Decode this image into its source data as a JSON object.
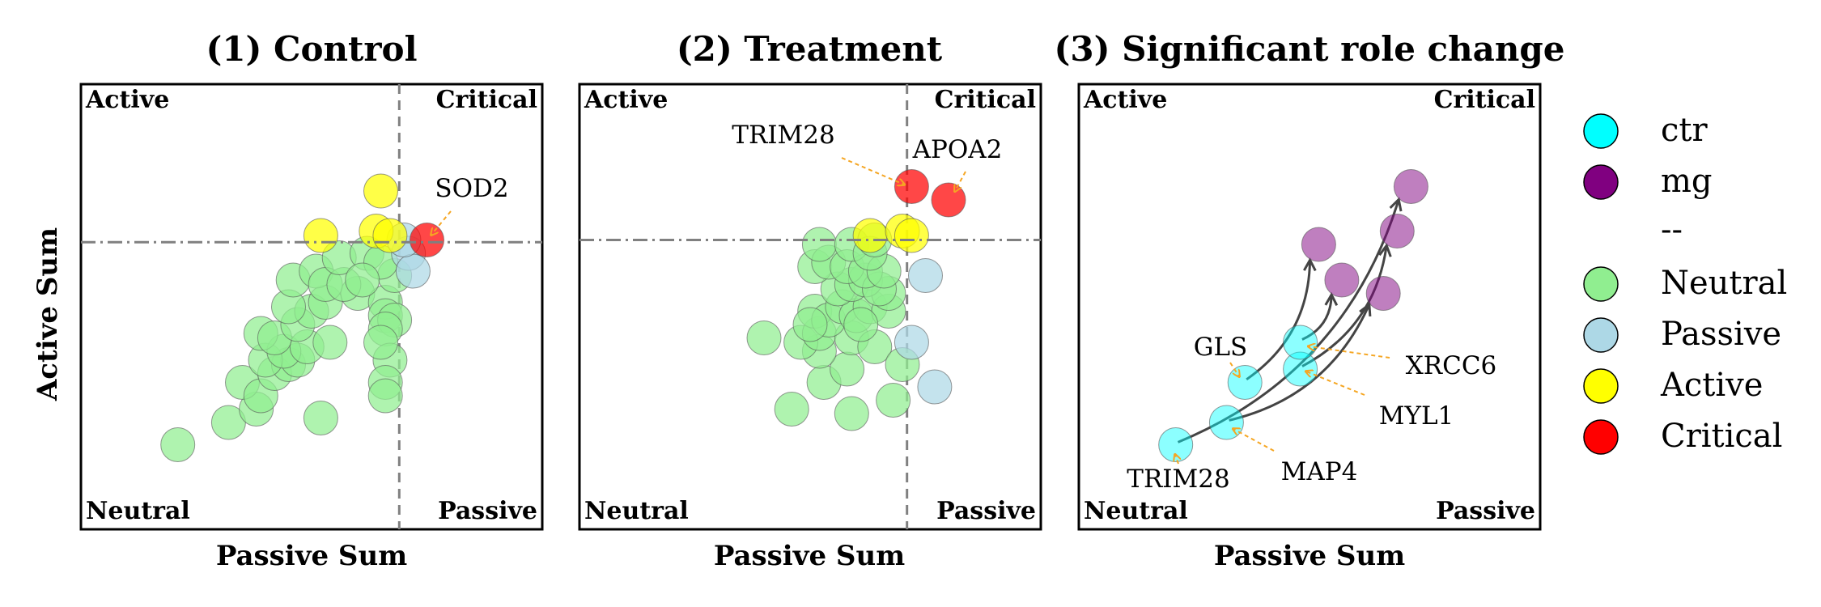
{
  "chart_data": [
    {
      "type": "scatter",
      "title": "(1) Control",
      "xlabel": "Passive Sum",
      "ylabel": "Active Sum",
      "xlim": [
        0,
        100
      ],
      "ylim": [
        0,
        100
      ],
      "threshold_x": 69,
      "threshold_y": 64.5,
      "quadrant_labels": {
        "top_left": "Active",
        "top_right": "Critical",
        "bottom_left": "Neutral",
        "bottom_right": "Passive"
      },
      "points": [
        {
          "x": 21,
          "y": 19,
          "role": "Neutral"
        },
        {
          "x": 32,
          "y": 24,
          "role": "Neutral"
        },
        {
          "x": 38,
          "y": 27,
          "role": "Neutral"
        },
        {
          "x": 35,
          "y": 33,
          "role": "Neutral"
        },
        {
          "x": 39,
          "y": 30,
          "role": "Neutral"
        },
        {
          "x": 42,
          "y": 35,
          "role": "Neutral"
        },
        {
          "x": 45,
          "y": 37,
          "role": "Neutral"
        },
        {
          "x": 47,
          "y": 38,
          "role": "Neutral"
        },
        {
          "x": 40,
          "y": 38,
          "role": "Neutral"
        },
        {
          "x": 44,
          "y": 40,
          "role": "Neutral"
        },
        {
          "x": 49,
          "y": 41,
          "role": "Neutral"
        },
        {
          "x": 54,
          "y": 42,
          "role": "Neutral"
        },
        {
          "x": 39,
          "y": 44,
          "role": "Neutral"
        },
        {
          "x": 42,
          "y": 43,
          "role": "Neutral"
        },
        {
          "x": 47,
          "y": 46,
          "role": "Neutral"
        },
        {
          "x": 50,
          "y": 49,
          "role": "Neutral"
        },
        {
          "x": 45,
          "y": 50,
          "role": "Neutral"
        },
        {
          "x": 53,
          "y": 51,
          "role": "Neutral"
        },
        {
          "x": 60,
          "y": 53,
          "role": "Neutral"
        },
        {
          "x": 66,
          "y": 51,
          "role": "Neutral"
        },
        {
          "x": 46,
          "y": 56,
          "role": "Neutral"
        },
        {
          "x": 51,
          "y": 58,
          "role": "Neutral"
        },
        {
          "x": 53,
          "y": 55,
          "role": "Neutral"
        },
        {
          "x": 57,
          "y": 55,
          "role": "Neutral"
        },
        {
          "x": 66,
          "y": 48,
          "role": "Neutral"
        },
        {
          "x": 68,
          "y": 47,
          "role": "Neutral"
        },
        {
          "x": 66,
          "y": 45,
          "role": "Neutral"
        },
        {
          "x": 67,
          "y": 38,
          "role": "Neutral"
        },
        {
          "x": 66,
          "y": 33,
          "role": "Neutral"
        },
        {
          "x": 66,
          "y": 30,
          "role": "Neutral"
        },
        {
          "x": 52,
          "y": 25,
          "role": "Neutral"
        },
        {
          "x": 56,
          "y": 61,
          "role": "Neutral"
        },
        {
          "x": 62,
          "y": 62,
          "role": "Neutral"
        },
        {
          "x": 68,
          "y": 57,
          "role": "Neutral"
        },
        {
          "x": 65,
          "y": 60,
          "role": "Neutral"
        },
        {
          "x": 65,
          "y": 42,
          "role": "Neutral"
        },
        {
          "x": 61,
          "y": 56,
          "role": "Neutral"
        },
        {
          "x": 71,
          "y": 62,
          "role": "Passive"
        },
        {
          "x": 72,
          "y": 58,
          "role": "Passive"
        },
        {
          "x": 70,
          "y": 65,
          "role": "Passive"
        },
        {
          "x": 52,
          "y": 66,
          "role": "Active"
        },
        {
          "x": 65,
          "y": 76,
          "role": "Active"
        },
        {
          "x": 64,
          "y": 67,
          "role": "Active"
        },
        {
          "x": 67,
          "y": 66,
          "role": "Active"
        },
        {
          "x": 75,
          "y": 65,
          "role": "Critical"
        }
      ],
      "annotations": [
        {
          "text": "SOD2",
          "x": 75,
          "y": 65
        }
      ]
    },
    {
      "type": "scatter",
      "title": "(2) Treatment",
      "xlabel": "Passive Sum",
      "ylabel": "",
      "xlim": [
        0,
        100
      ],
      "ylim": [
        0,
        100
      ],
      "threshold_x": 71,
      "threshold_y": 65,
      "quadrant_labels": {
        "top_left": "Active",
        "top_right": "Critical",
        "bottom_left": "Neutral",
        "bottom_right": "Passive"
      },
      "points": [
        {
          "x": 46,
          "y": 27,
          "role": "Neutral"
        },
        {
          "x": 53,
          "y": 33,
          "role": "Neutral"
        },
        {
          "x": 59,
          "y": 26,
          "role": "Neutral"
        },
        {
          "x": 68,
          "y": 29,
          "role": "Neutral"
        },
        {
          "x": 58,
          "y": 36,
          "role": "Neutral"
        },
        {
          "x": 52,
          "y": 40,
          "role": "Neutral"
        },
        {
          "x": 40,
          "y": 43,
          "role": "Neutral"
        },
        {
          "x": 48,
          "y": 42,
          "role": "Neutral"
        },
        {
          "x": 52,
          "y": 44,
          "role": "Neutral"
        },
        {
          "x": 59,
          "y": 43,
          "role": "Neutral"
        },
        {
          "x": 64,
          "y": 41,
          "role": "Neutral"
        },
        {
          "x": 70,
          "y": 37,
          "role": "Neutral"
        },
        {
          "x": 51,
          "y": 49,
          "role": "Neutral"
        },
        {
          "x": 54,
          "y": 47,
          "role": "Neutral"
        },
        {
          "x": 57,
          "y": 50,
          "role": "Neutral"
        },
        {
          "x": 60,
          "y": 48,
          "role": "Neutral"
        },
        {
          "x": 63,
          "y": 50,
          "role": "Neutral"
        },
        {
          "x": 67,
          "y": 49,
          "role": "Neutral"
        },
        {
          "x": 67,
          "y": 53,
          "role": "Neutral"
        },
        {
          "x": 56,
          "y": 54,
          "role": "Neutral"
        },
        {
          "x": 59,
          "y": 55,
          "role": "Neutral"
        },
        {
          "x": 62,
          "y": 56,
          "role": "Neutral"
        },
        {
          "x": 65,
          "y": 54,
          "role": "Neutral"
        },
        {
          "x": 51,
          "y": 59,
          "role": "Neutral"
        },
        {
          "x": 54,
          "y": 60,
          "role": "Neutral"
        },
        {
          "x": 58,
          "y": 59,
          "role": "Neutral"
        },
        {
          "x": 62,
          "y": 58,
          "role": "Neutral"
        },
        {
          "x": 66,
          "y": 58,
          "role": "Neutral"
        },
        {
          "x": 52,
          "y": 64,
          "role": "Neutral"
        },
        {
          "x": 59,
          "y": 64,
          "role": "Neutral"
        },
        {
          "x": 63,
          "y": 62,
          "role": "Neutral"
        },
        {
          "x": 64,
          "y": 65,
          "role": "Neutral"
        },
        {
          "x": 61,
          "y": 46,
          "role": "Neutral"
        },
        {
          "x": 50,
          "y": 46,
          "role": "Neutral"
        },
        {
          "x": 75,
          "y": 57,
          "role": "Passive"
        },
        {
          "x": 72,
          "y": 42,
          "role": "Passive"
        },
        {
          "x": 77,
          "y": 32,
          "role": "Passive"
        },
        {
          "x": 63,
          "y": 66,
          "role": "Active"
        },
        {
          "x": 70,
          "y": 67,
          "role": "Active"
        },
        {
          "x": 72,
          "y": 66,
          "role": "Active"
        },
        {
          "x": 72,
          "y": 77,
          "role": "Critical"
        },
        {
          "x": 80,
          "y": 74,
          "role": "Critical"
        }
      ],
      "annotations": [
        {
          "text": "TRIM28",
          "x": 72,
          "y": 77
        },
        {
          "text": "APOA2",
          "x": 80,
          "y": 74
        }
      ]
    },
    {
      "type": "scatter",
      "title": "(3) Significant role change",
      "xlabel": "Passive Sum",
      "ylabel": "",
      "xlim": [
        0,
        100
      ],
      "ylim": [
        0,
        100
      ],
      "quadrant_labels": {
        "top_left": "Active",
        "top_right": "Critical",
        "bottom_left": "Neutral",
        "bottom_right": "Passive"
      },
      "points": [
        {
          "label": "TRIM28",
          "ctr": {
            "x": 21,
            "y": 19
          },
          "mg": {
            "x": 72,
            "y": 77
          }
        },
        {
          "label": "MAP4",
          "ctr": {
            "x": 32,
            "y": 24
          },
          "mg": {
            "x": 66,
            "y": 53
          }
        },
        {
          "label": "MYL1",
          "ctr": {
            "x": 48,
            "y": 36
          },
          "mg": {
            "x": 69,
            "y": 67
          }
        },
        {
          "label": "XRCC6",
          "ctr": {
            "x": 48,
            "y": 42
          },
          "mg": {
            "x": 57,
            "y": 56
          }
        },
        {
          "label": "GLS",
          "ctr": {
            "x": 36,
            "y": 33
          },
          "mg": {
            "x": 52,
            "y": 64
          }
        }
      ]
    }
  ],
  "legend": [
    {
      "label": "ctr",
      "color": "#00ffff"
    },
    {
      "label": "mg",
      "color": "#800080"
    },
    {
      "label": "--",
      "color": ""
    },
    {
      "label": "Neutral",
      "color": "#90ee90"
    },
    {
      "label": "Passive",
      "color": "#add8e6"
    },
    {
      "label": "Active",
      "color": "#ffff00"
    },
    {
      "label": "Critical",
      "color": "#ff0000"
    }
  ],
  "colors": {
    "Neutral": "#90ee90",
    "Passive": "#add8e6",
    "Active": "#ffff00",
    "Critical": "#ff0000",
    "ctr": "#00ffff",
    "mg": "#800080",
    "annotation_arrow": "#f5a623",
    "change_arrow": "#444444"
  }
}
